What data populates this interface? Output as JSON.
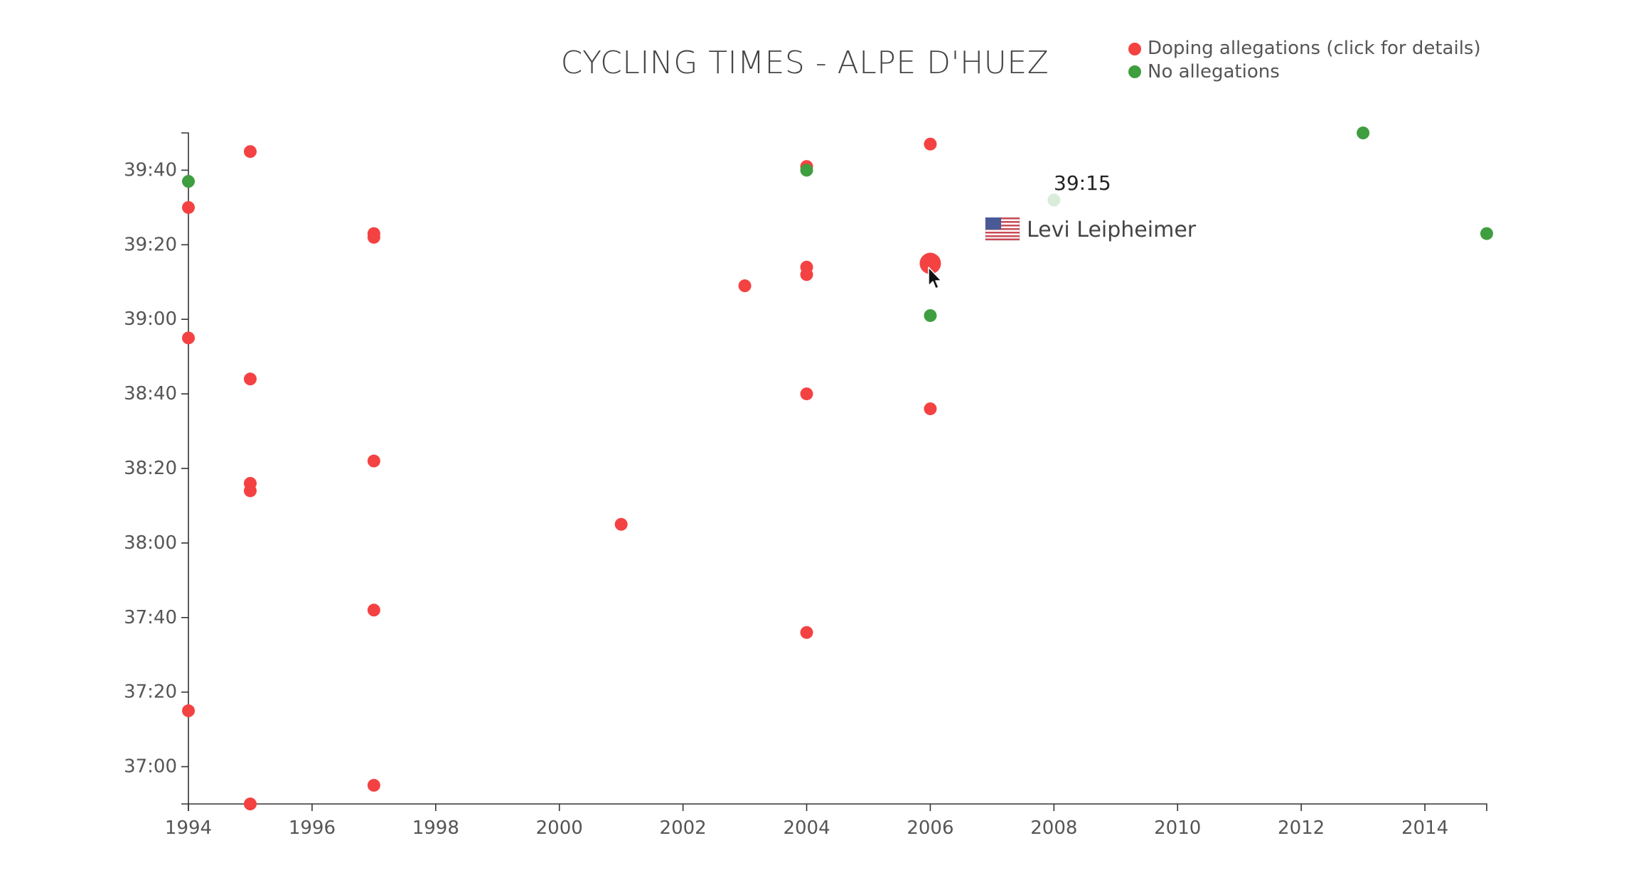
{
  "chart_data": {
    "type": "scatter",
    "title": "CYCLING TIMES - ALPE D'HUEZ",
    "xlabel": "",
    "ylabel": "",
    "xlim": [
      1994,
      2015
    ],
    "ylim": [
      "36:50",
      "39:50"
    ],
    "x_ticks": [
      "1994",
      "1996",
      "1998",
      "2000",
      "2002",
      "2004",
      "2006",
      "2008",
      "2010",
      "2012",
      "2014"
    ],
    "y_ticks": [
      "37:00",
      "37:20",
      "37:40",
      "38:00",
      "38:20",
      "38:40",
      "39:00",
      "39:20",
      "39:40"
    ],
    "legend": [
      {
        "label": "Doping allegations (click for details)",
        "color": "#f44242"
      },
      {
        "label": "No allegations",
        "color": "#3f9e3f"
      }
    ],
    "legend_position": "top-right",
    "grid": false,
    "series": [
      {
        "name": "Doping allegations (click for details)",
        "color": "#f44242",
        "points": [
          {
            "year": 1994,
            "time": "39:30"
          },
          {
            "year": 1994,
            "time": "38:55"
          },
          {
            "year": 1994,
            "time": "37:15"
          },
          {
            "year": 1995,
            "time": "39:45"
          },
          {
            "year": 1995,
            "time": "38:44"
          },
          {
            "year": 1995,
            "time": "38:16"
          },
          {
            "year": 1995,
            "time": "38:14"
          },
          {
            "year": 1995,
            "time": "36:50"
          },
          {
            "year": 1997,
            "time": "39:23"
          },
          {
            "year": 1997,
            "time": "39:22"
          },
          {
            "year": 1997,
            "time": "38:22"
          },
          {
            "year": 1997,
            "time": "37:42"
          },
          {
            "year": 1997,
            "time": "36:55"
          },
          {
            "year": 2001,
            "time": "38:05"
          },
          {
            "year": 2003,
            "time": "39:09"
          },
          {
            "year": 2004,
            "time": "39:41"
          },
          {
            "year": 2004,
            "time": "39:14"
          },
          {
            "year": 2004,
            "time": "39:12"
          },
          {
            "year": 2004,
            "time": "38:40"
          },
          {
            "year": 2004,
            "time": "37:36"
          },
          {
            "year": 2006,
            "time": "39:47"
          },
          {
            "year": 2006,
            "time": "39:15",
            "highlighted": true
          },
          {
            "year": 2006,
            "time": "38:36"
          }
        ]
      },
      {
        "name": "No allegations",
        "color": "#3f9e3f",
        "points": [
          {
            "year": 1994,
            "time": "39:37"
          },
          {
            "year": 2004,
            "time": "39:40"
          },
          {
            "year": 2006,
            "time": "39:01"
          },
          {
            "year": 2008,
            "time": "39:32",
            "faded": true
          },
          {
            "year": 2013,
            "time": "39:50"
          },
          {
            "year": 2015,
            "time": "39:23"
          }
        ]
      }
    ]
  },
  "tooltip": {
    "time": "39:15",
    "name": "Levi Leipheimer",
    "flag_icon": "us-flag-icon"
  }
}
